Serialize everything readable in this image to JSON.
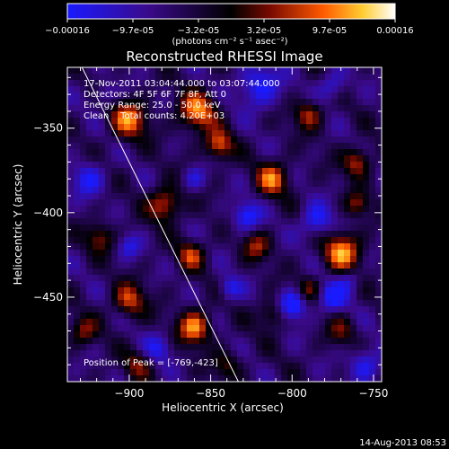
{
  "colorbar": {
    "ticks": [
      "-0.00016",
      "-9.7e-05",
      "-3.2e-05",
      "3.2e-05",
      "9.7e-05",
      "0.00016"
    ],
    "unit_label": "(photons cm⁻² s⁻¹ asec⁻²)",
    "colors": [
      "#1a1aff",
      "#3a0a8a",
      "#000000",
      "#7a0a00",
      "#ff5a00",
      "#ffcc30",
      "#ffffff"
    ]
  },
  "chart_data": {
    "type": "heatmap",
    "title": "Reconstructed RHESSI Image",
    "xlabel": "Heliocentric X (arcsec)",
    "ylabel": "Heliocentric Y (arcsec)",
    "xlim": [
      -938,
      -745
    ],
    "ylim": [
      -500,
      -314
    ],
    "x_ticks": [
      -900,
      -850,
      -800,
      -750
    ],
    "y_ticks": [
      -350,
      -400,
      -450
    ],
    "x_tick_labels": [
      "−900",
      "−850",
      "−800",
      "−750"
    ],
    "y_tick_labels": [
      "−350",
      "−400",
      "−450"
    ],
    "value_range": [
      -0.00016,
      0.00016
    ],
    "annotations": [
      "17-Nov-2011 03:04:44.000 to 03:07:44.000",
      "Detectors: 4F 5F 6F 7F 8F, Att 0",
      "Energy Range: 25.0 - 50.0 keV",
      "Clean    Total counts: 4.20E+03"
    ],
    "peak_label": "Position of Peak = [-769,-423]",
    "peak": [
      -769,
      -423
    ],
    "limb_line": [
      [
        -929,
        -314
      ],
      [
        -833,
        -500
      ]
    ],
    "blobs": [
      {
        "x": -860,
        "y": -468,
        "v": 1.0,
        "s": 7
      },
      {
        "x": -769,
        "y": -423,
        "v": 1.0,
        "s": 8
      },
      {
        "x": -900,
        "y": -345,
        "v": 0.9,
        "s": 8
      },
      {
        "x": -858,
        "y": -340,
        "v": 0.95,
        "s": 8
      },
      {
        "x": -845,
        "y": -360,
        "v": 0.85,
        "s": 6
      },
      {
        "x": -878,
        "y": -395,
        "v": 0.85,
        "s": 7
      },
      {
        "x": -918,
        "y": -415,
        "v": 0.6,
        "s": 6
      },
      {
        "x": -812,
        "y": -380,
        "v": 0.85,
        "s": 7
      },
      {
        "x": -790,
        "y": -342,
        "v": 0.7,
        "s": 6
      },
      {
        "x": -760,
        "y": -370,
        "v": 0.75,
        "s": 6
      },
      {
        "x": -822,
        "y": -420,
        "v": 0.6,
        "s": 6
      },
      {
        "x": -862,
        "y": -425,
        "v": 0.7,
        "s": 6
      },
      {
        "x": -900,
        "y": -452,
        "v": 0.75,
        "s": 7
      },
      {
        "x": -928,
        "y": -470,
        "v": 0.55,
        "s": 6
      },
      {
        "x": -812,
        "y": -460,
        "v": 0.55,
        "s": 6
      },
      {
        "x": -770,
        "y": -470,
        "v": 0.45,
        "s": 6
      },
      {
        "x": -790,
        "y": -445,
        "v": 0.5,
        "s": 5
      },
      {
        "x": -895,
        "y": -490,
        "v": 0.5,
        "s": 6
      },
      {
        "x": -840,
        "y": -490,
        "v": 0.45,
        "s": 6
      },
      {
        "x": -760,
        "y": -395,
        "v": 0.6,
        "s": 5
      },
      {
        "x": -820,
        "y": -325,
        "v": -0.7,
        "s": 9
      },
      {
        "x": -785,
        "y": -405,
        "v": -0.65,
        "s": 7
      },
      {
        "x": -800,
        "y": -455,
        "v": -0.9,
        "s": 6
      },
      {
        "x": -775,
        "y": -450,
        "v": -0.7,
        "s": 6
      },
      {
        "x": -828,
        "y": -402,
        "v": -0.7,
        "s": 6
      },
      {
        "x": -925,
        "y": -380,
        "v": -0.6,
        "s": 7
      },
      {
        "x": -882,
        "y": -480,
        "v": -0.5,
        "s": 6
      },
      {
        "x": -755,
        "y": -490,
        "v": -0.6,
        "s": 7
      },
      {
        "x": -838,
        "y": -445,
        "v": -0.55,
        "s": 5
      },
      {
        "x": -775,
        "y": -325,
        "v": -0.5,
        "s": 6
      },
      {
        "x": -860,
        "y": -380,
        "v": -0.45,
        "s": 5
      },
      {
        "x": -915,
        "y": -330,
        "v": -0.4,
        "s": 5
      },
      {
        "x": -900,
        "y": -420,
        "v": -0.45,
        "s": 5
      },
      {
        "x": -765,
        "y": -440,
        "v": -0.4,
        "s": 5
      }
    ]
  },
  "footer": {
    "date_stamp": "14-Aug-2013 08:53"
  }
}
